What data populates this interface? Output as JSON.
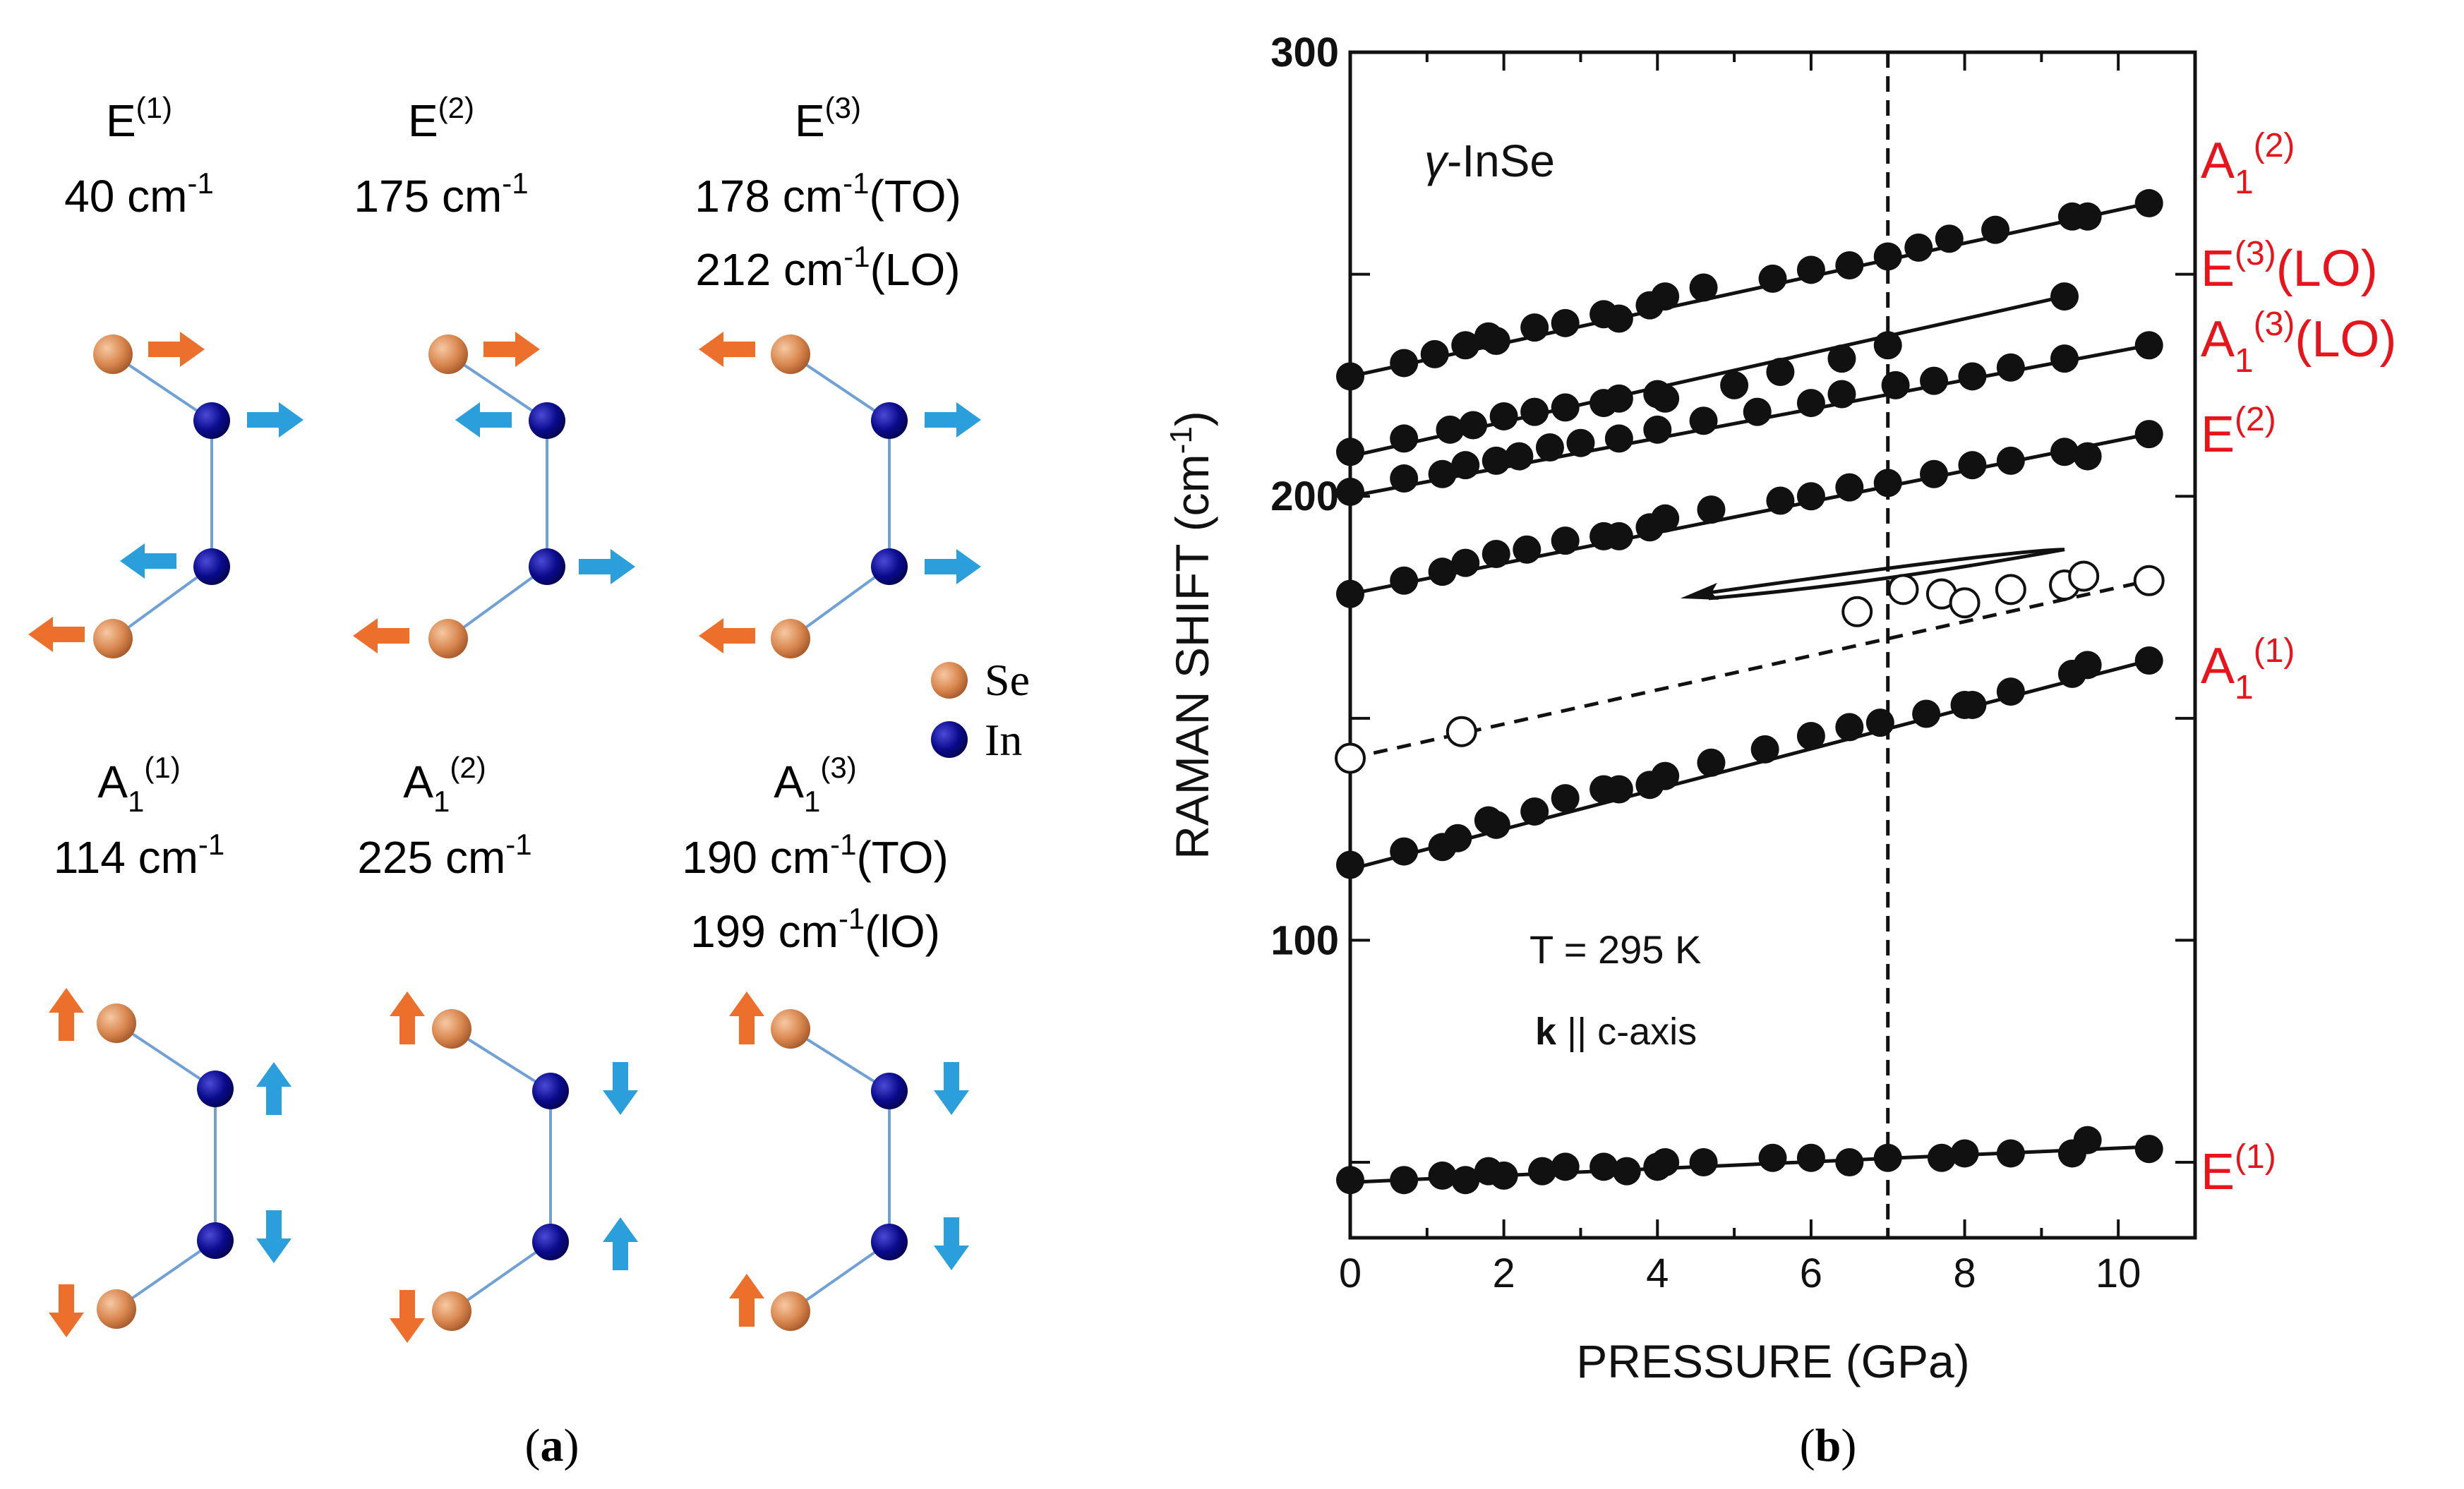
{
  "panel_a": {
    "modes": [
      {
        "id": "E1",
        "sym": "E",
        "sub": "",
        "sup": "(1)",
        "freqs": [
          {
            "value": "40",
            "unit": "cm",
            "exp": "-1",
            "tag": ""
          }
        ]
      },
      {
        "id": "E2",
        "sym": "E",
        "sub": "",
        "sup": "(2)",
        "freqs": [
          {
            "value": "175",
            "unit": "cm",
            "exp": "-1",
            "tag": ""
          }
        ]
      },
      {
        "id": "E3",
        "sym": "E",
        "sub": "",
        "sup": "(3)",
        "freqs": [
          {
            "value": "178",
            "unit": "cm",
            "exp": "-1",
            "tag": "(TO)"
          },
          {
            "value": "212",
            "unit": "cm",
            "exp": "-1",
            "tag": "(LO)"
          }
        ]
      },
      {
        "id": "A11",
        "sym": "A",
        "sub": "1",
        "sup": "(1)",
        "freqs": [
          {
            "value": "114",
            "unit": "cm",
            "exp": "-1",
            "tag": ""
          }
        ]
      },
      {
        "id": "A12",
        "sym": "A",
        "sub": "1",
        "sup": "(2)",
        "freqs": [
          {
            "value": "225",
            "unit": "cm",
            "exp": "-1",
            "tag": ""
          }
        ]
      },
      {
        "id": "A13",
        "sym": "A",
        "sub": "1",
        "sup": "(3)",
        "freqs": [
          {
            "value": "190",
            "unit": "cm",
            "exp": "-1",
            "tag": "(TO)"
          },
          {
            "value": "199",
            "unit": "cm",
            "exp": "-1",
            "tag": "(lO)"
          }
        ]
      }
    ],
    "legend": [
      {
        "label": "Se",
        "color": "#d9874f"
      },
      {
        "label": "In",
        "color": "#0a0a8c"
      }
    ],
    "caption": {
      "open": "(",
      "letter": "a",
      "close": ")"
    }
  },
  "panel_b": {
    "caption": {
      "open": "(",
      "letter": "b",
      "close": ")"
    },
    "material_prefix": "γ",
    "material": "-InSe",
    "temperature": "T = 295 K",
    "k_label_bold": "k",
    "k_label_rest": " || c-axis",
    "mode_labels": [
      {
        "sym": "A",
        "sub": "1",
        "sup": "(2)",
        "suffix": ""
      },
      {
        "sym": "E",
        "sub": "",
        "sup": "(3)",
        "suffix": "(LO)"
      },
      {
        "sym": "A",
        "sub": "1",
        "sup": "(3)",
        "suffix": "(LO)"
      },
      {
        "sym": "E",
        "sub": "",
        "sup": "(2)",
        "suffix": ""
      },
      {
        "sym": "A",
        "sub": "1",
        "sup": "(1)",
        "suffix": ""
      },
      {
        "sym": "E",
        "sub": "",
        "sup": "(1)",
        "suffix": ""
      }
    ]
  },
  "chart_data": {
    "type": "scatter",
    "title": "γ-InSe",
    "xlabel": "PRESSURE  (GPa)",
    "ylabel": "RAMAN SHIFT",
    "ylabel_unit": "(cm",
    "ylabel_unit_exp": "-1",
    "ylabel_unit_close": ")",
    "xlim": [
      0,
      11
    ],
    "ylim": [
      33,
      300
    ],
    "xticks": [
      0,
      2,
      4,
      6,
      8,
      10
    ],
    "yticks_labeled": [
      100,
      200,
      300
    ],
    "yticks_minor": [
      50,
      150,
      250
    ],
    "vline_x": 7,
    "series": [
      {
        "name": "A1(2)",
        "filled": true,
        "fit": "solid",
        "x": [
          0,
          0.7,
          1.1,
          1.5,
          1.8,
          1.9,
          2.4,
          2.8,
          3.3,
          3.5,
          3.9,
          4.1,
          4.6,
          5.5,
          6.0,
          6.5,
          7.0,
          7.4,
          7.8,
          8.4,
          9.4,
          9.6,
          10.4
        ],
        "y": [
          227,
          230,
          232,
          234,
          236,
          235,
          238,
          239,
          241,
          240,
          243,
          245,
          247,
          249,
          251,
          252,
          254,
          256,
          258,
          260,
          263,
          263,
          266
        ]
      },
      {
        "name": "E(3)(LO)",
        "filled": true,
        "fit": "solid",
        "x": [
          0,
          0.7,
          1.3,
          1.6,
          2.0,
          2.4,
          2.8,
          3.3,
          3.5,
          4.0,
          4.1,
          5.0,
          5.6,
          6.4,
          7.0,
          9.3
        ],
        "y": [
          210,
          213,
          215,
          216,
          218,
          219,
          220,
          221,
          222,
          223,
          222,
          225,
          228,
          231,
          234,
          245
        ]
      },
      {
        "name": "A1(3)(LO)",
        "filled": true,
        "fit": "solid",
        "x": [
          0,
          0.7,
          1.2,
          1.5,
          1.9,
          2.2,
          2.6,
          3.0,
          3.5,
          4.0,
          4.6,
          5.3,
          6.0,
          6.4,
          7.1,
          7.6,
          8.1,
          8.6,
          9.3,
          10.4
        ],
        "y": [
          201,
          204,
          205,
          207,
          208,
          209,
          211,
          212,
          213,
          215,
          217,
          219,
          221,
          223,
          225,
          226,
          227,
          229,
          231,
          234
        ]
      },
      {
        "name": "E(2)",
        "filled": true,
        "fit": "solid",
        "x": [
          0,
          0.7,
          1.2,
          1.5,
          1.9,
          2.3,
          2.8,
          3.3,
          3.5,
          3.9,
          4.1,
          4.7,
          5.6,
          6.0,
          6.5,
          7.0,
          7.6,
          8.1,
          8.6,
          9.3,
          9.6,
          10.4
        ],
        "y": [
          178,
          181,
          183,
          185,
          187,
          188,
          190,
          191,
          191,
          193,
          195,
          197,
          199,
          200,
          202,
          203,
          205,
          207,
          208,
          210,
          209,
          214
        ]
      },
      {
        "name": "A1(1)",
        "filled": true,
        "fit": "solid",
        "x": [
          0,
          0.7,
          1.2,
          1.4,
          1.8,
          1.9,
          2.4,
          2.8,
          3.3,
          3.5,
          3.9,
          4.1,
          4.7,
          5.4,
          6.0,
          6.5,
          6.9,
          7.5,
          8.0,
          8.1,
          8.6,
          9.4,
          9.6,
          10.4
        ],
        "y": [
          117,
          120,
          121,
          123,
          127,
          126,
          129,
          132,
          134,
          134,
          135,
          137,
          140,
          143,
          146,
          148,
          149,
          151,
          153,
          153,
          156,
          160,
          162,
          163
        ]
      },
      {
        "name": "open",
        "filled": false,
        "fit": "dashed",
        "x": [
          0,
          1.45,
          6.6,
          7.2,
          7.7,
          8.0,
          8.6,
          9.3,
          9.55,
          10.4
        ],
        "y": [
          141,
          147,
          174,
          179,
          178,
          176,
          179,
          180,
          182,
          181
        ]
      },
      {
        "name": "E(1)",
        "filled": true,
        "fit": "solid",
        "x": [
          0,
          0.7,
          1.2,
          1.5,
          1.8,
          2.0,
          2.5,
          2.8,
          3.3,
          3.6,
          4.0,
          4.1,
          4.6,
          5.5,
          6.0,
          6.5,
          7.0,
          7.7,
          8.0,
          8.6,
          9.4,
          9.6,
          10.4
        ],
        "y": [
          46,
          46,
          47,
          46,
          48,
          47,
          48,
          49,
          49,
          48,
          49,
          50,
          50,
          51,
          51,
          50,
          51,
          51,
          52,
          52,
          52,
          55,
          53
        ]
      }
    ],
    "fit_lines": [
      {
        "name": "A1(2)",
        "x": [
          0,
          10.4
        ],
        "y": [
          227,
          266
        ],
        "style": "solid"
      },
      {
        "name": "E(3)(LO)",
        "x": [
          0,
          9.3
        ],
        "y": [
          209,
          245
        ],
        "style": "solid"
      },
      {
        "name": "A1(3)(LO)",
        "x": [
          0,
          10.4
        ],
        "y": [
          200,
          234
        ],
        "style": "solid"
      },
      {
        "name": "E(2)",
        "x": [
          0,
          10.4
        ],
        "y": [
          178,
          214
        ],
        "style": "solid"
      },
      {
        "name": "A1(1)",
        "x": [
          0,
          10.4
        ],
        "y": [
          116,
          163
        ],
        "style": "solid"
      },
      {
        "name": "open",
        "x": [
          0,
          10.4
        ],
        "y": [
          141,
          181
        ],
        "style": "dashed"
      },
      {
        "name": "E(1)",
        "x": [
          0,
          10.4
        ],
        "y": [
          45.5,
          53.5
        ],
        "style": "solid"
      }
    ],
    "arrow": {
      "from": [
        8.0,
        187
      ],
      "to": [
        4.3,
        177
      ],
      "return": [
        9.3,
        188
      ]
    }
  }
}
